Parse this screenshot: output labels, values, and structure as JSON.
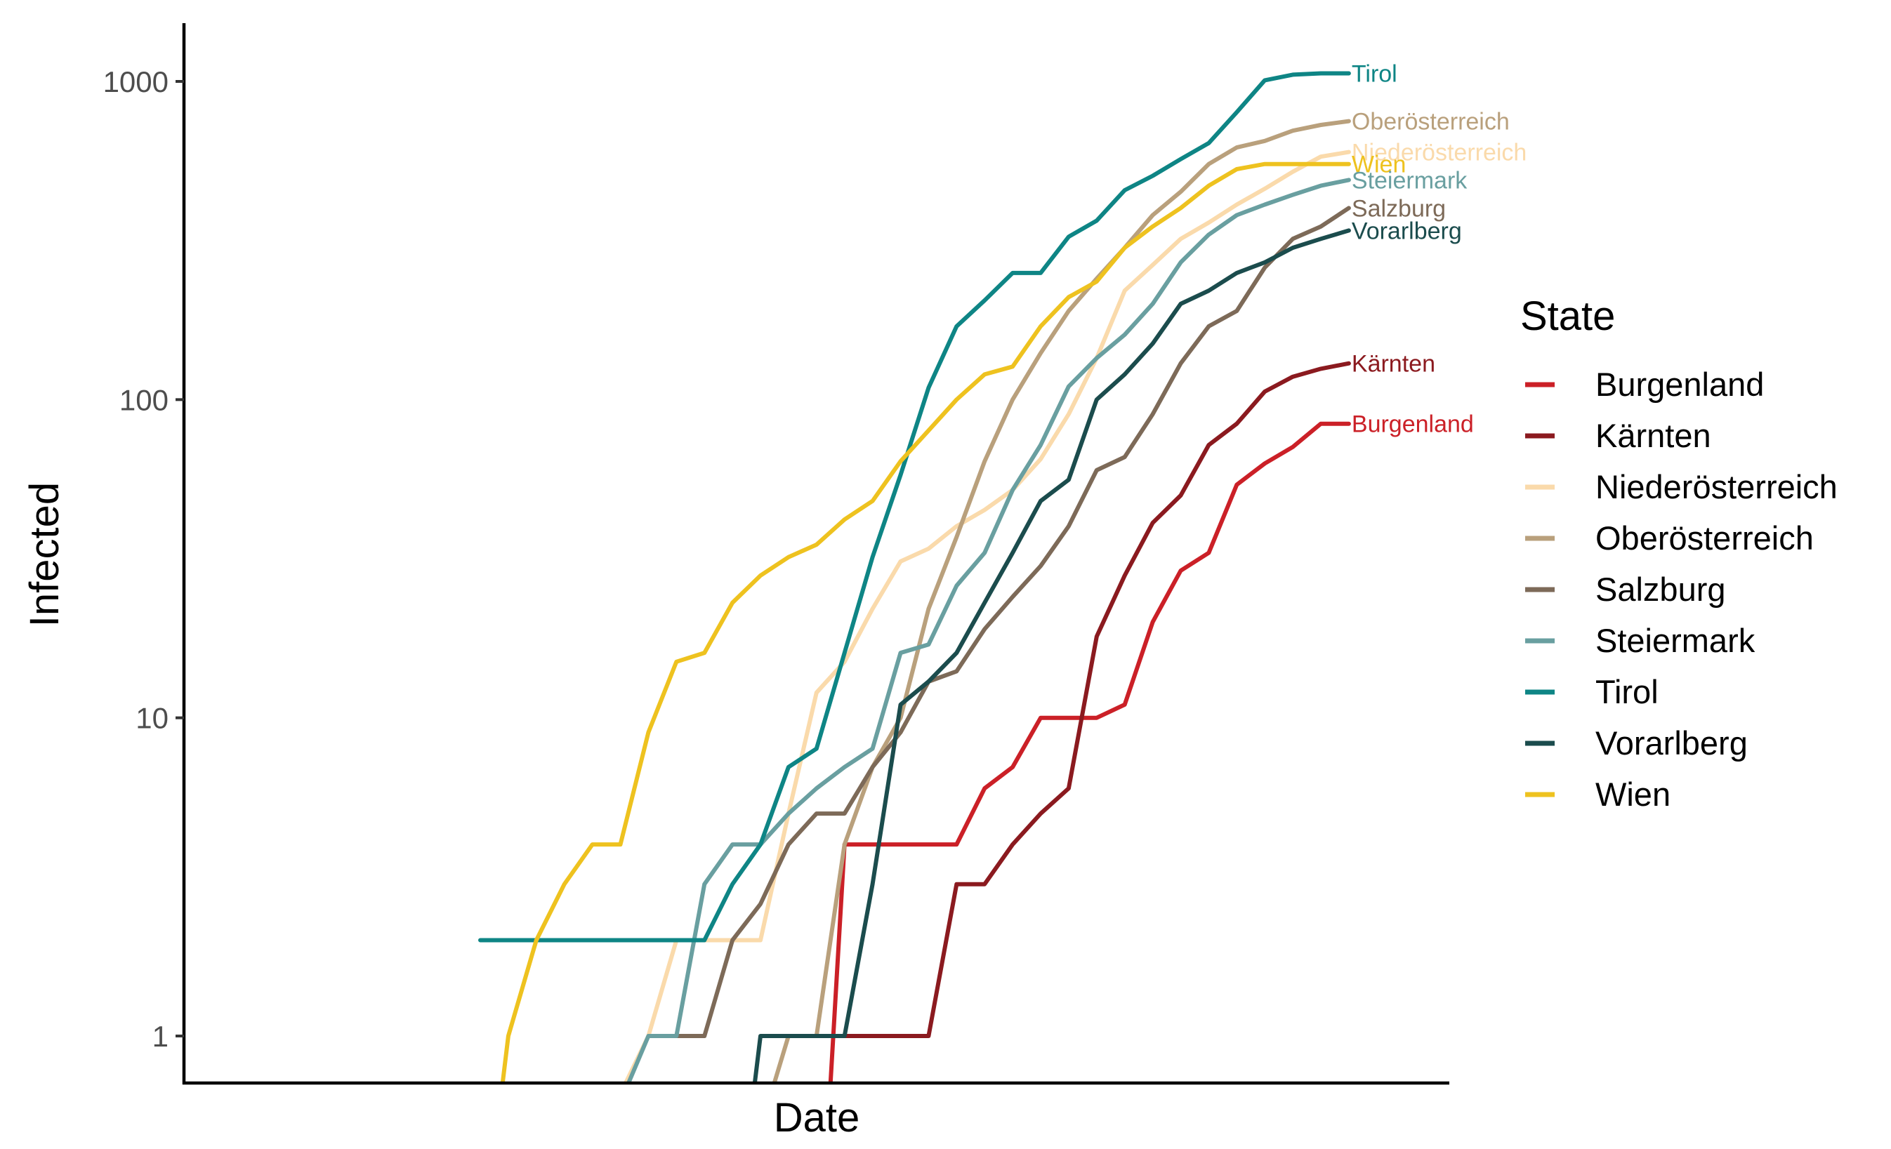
{
  "chart_data": {
    "type": "line",
    "title": "",
    "xlabel": "Date",
    "ylabel": "Infected",
    "y_scale": "log10",
    "ylim": [
      0.74,
      1500
    ],
    "yticks": [
      1,
      10,
      100,
      1000
    ],
    "ytick_labels": [
      "1",
      "10",
      "100",
      "1000"
    ],
    "x_ticks_shown": false,
    "x_note": "x values are day indices (axis shows no date tick labels)",
    "xlim": [
      -11,
      41
    ],
    "grid": false,
    "legend": {
      "title": "State",
      "position": "right"
    },
    "series": [
      {
        "name": "Burgenland",
        "color": "#CB2027",
        "x": [
          21.5,
          22,
          23,
          24,
          25,
          26,
          27,
          28,
          29,
          30,
          31,
          32,
          33,
          34,
          35,
          36,
          37,
          38,
          39,
          40
        ],
        "y": [
          0.6,
          4,
          4,
          4,
          4,
          4,
          6,
          7,
          10,
          10,
          10,
          11,
          20,
          29,
          33,
          54,
          63,
          71,
          84,
          84
        ]
      },
      {
        "name": "Kärnten",
        "color": "#8B1A1F",
        "x": [
          21,
          22,
          23,
          24,
          25,
          26,
          27,
          28,
          29,
          30,
          31,
          32,
          33,
          34,
          35,
          36,
          37,
          38,
          39,
          40
        ],
        "y": [
          1,
          1,
          1,
          1,
          1,
          3,
          3,
          4,
          5,
          6,
          18,
          28,
          41,
          50,
          72,
          84,
          106,
          118,
          125,
          130
        ]
      },
      {
        "name": "Niederösterreich",
        "color": "#FADAAB",
        "x": [
          14.2,
          15,
          16,
          17,
          18,
          19,
          20,
          21,
          22,
          23,
          24,
          25,
          26,
          27,
          28,
          29,
          30,
          31,
          32,
          33,
          34,
          35,
          36,
          37,
          38,
          39,
          40
        ],
        "y": [
          0.6,
          1,
          2,
          2,
          2,
          2,
          5,
          12,
          15,
          22,
          31,
          34,
          40,
          45,
          52,
          65,
          90,
          135,
          220,
          265,
          320,
          360,
          410,
          460,
          520,
          580,
          600
        ]
      },
      {
        "name": "Oberösterreich",
        "color": "#B9A07C",
        "x": [
          19.5,
          20,
          21,
          22,
          23,
          24,
          25,
          26,
          27,
          28,
          29,
          30,
          31,
          32,
          33,
          34,
          35,
          36,
          37,
          38,
          39,
          40
        ],
        "y": [
          0.6,
          1,
          1,
          4,
          7,
          10,
          22,
          37,
          64,
          100,
          140,
          190,
          240,
          300,
          380,
          450,
          550,
          620,
          650,
          700,
          730,
          750
        ]
      },
      {
        "name": "Salzburg",
        "color": "#7D6A58",
        "x": [
          16,
          17,
          18,
          19,
          20,
          21,
          22,
          23,
          24,
          25,
          26,
          27,
          28,
          29,
          30,
          31,
          32,
          33,
          34,
          35,
          36,
          37,
          38,
          39,
          40
        ],
        "y": [
          1,
          1,
          2,
          2.6,
          4,
          5,
          5,
          7,
          9,
          13,
          14,
          19,
          24,
          30,
          40,
          60,
          66,
          90,
          130,
          170,
          190,
          260,
          320,
          350,
          400
        ]
      },
      {
        "name": "Steiermark",
        "color": "#699FA0",
        "x": [
          14.3,
          15,
          16,
          17,
          18,
          19,
          20,
          21,
          22,
          23,
          24,
          25,
          26,
          27,
          28,
          29,
          30,
          31,
          32,
          33,
          34,
          35,
          36,
          37,
          38,
          39,
          40
        ],
        "y": [
          0.6,
          1,
          1,
          3,
          4,
          4,
          5,
          6,
          7,
          8,
          16,
          17,
          26,
          33,
          52,
          72,
          110,
          135,
          160,
          200,
          270,
          330,
          380,
          410,
          440,
          470,
          490
        ]
      },
      {
        "name": "Tirol",
        "color": "#0E8585",
        "x": [
          9,
          10,
          11,
          12,
          13,
          14,
          15,
          16,
          17,
          18,
          19,
          20,
          21,
          22,
          23,
          24,
          25,
          26,
          27,
          28,
          29,
          30,
          31,
          32,
          33,
          34,
          35,
          36,
          37,
          38,
          39,
          39.8,
          40
        ],
        "y": [
          2,
          2,
          2,
          2,
          2,
          2,
          2,
          2,
          2,
          3,
          4,
          7,
          8,
          16,
          32,
          58,
          109,
          170,
          205,
          250,
          250,
          325,
          365,
          455,
          505,
          570,
          640,
          800,
          1008,
          1050,
          1060,
          1060,
          1060
        ]
      },
      {
        "name": "Vorarlberg",
        "color": "#1B4C4D",
        "x": [
          18.8,
          19,
          20,
          21,
          22,
          23,
          24,
          25,
          26,
          27,
          28,
          29,
          30,
          31,
          32,
          33,
          34,
          35,
          36,
          37,
          38,
          39,
          40
        ],
        "y": [
          0.6,
          1,
          1,
          1,
          1,
          3,
          11,
          13,
          16,
          23,
          33,
          48,
          56,
          100,
          120,
          150,
          200,
          220,
          250,
          270,
          300,
          320,
          340
        ]
      },
      {
        "name": "Wien",
        "color": "#EEC21F",
        "x": [
          9.8,
          10,
          11,
          12,
          13,
          14,
          15,
          16,
          17,
          18,
          19,
          20,
          21,
          22,
          23,
          24,
          25,
          26,
          27,
          28,
          29,
          30,
          31,
          32,
          33,
          34,
          35,
          36,
          37,
          38,
          39,
          40
        ],
        "y": [
          0.6,
          1,
          2,
          3,
          4,
          4,
          9,
          15,
          16,
          23,
          28,
          32,
          35,
          42,
          48,
          64,
          80,
          100,
          120,
          127,
          170,
          210,
          235,
          300,
          350,
          400,
          470,
          530,
          550,
          550,
          550,
          550
        ]
      }
    ],
    "end_labels": [
      {
        "series": "Tirol",
        "text": "Tirol",
        "y": 1060
      },
      {
        "series": "Oberösterreich",
        "text": "Oberösterreich",
        "y": 750
      },
      {
        "series": "Niederösterreich",
        "text": "Niederösterreich",
        "y": 600
      },
      {
        "series": "Wien",
        "text": "Wien",
        "y": 550
      },
      {
        "series": "Steiermark",
        "text": "Steiermark",
        "y": 490
      },
      {
        "series": "Salzburg",
        "text": "Salzburg",
        "y": 400
      },
      {
        "series": "Vorarlberg",
        "text": "Vorarlberg",
        "y": 340
      },
      {
        "series": "Kärnten",
        "text": "Kärnten",
        "y": 130
      },
      {
        "series": "Burgenland",
        "text": "Burgenland",
        "y": 84
      }
    ]
  }
}
